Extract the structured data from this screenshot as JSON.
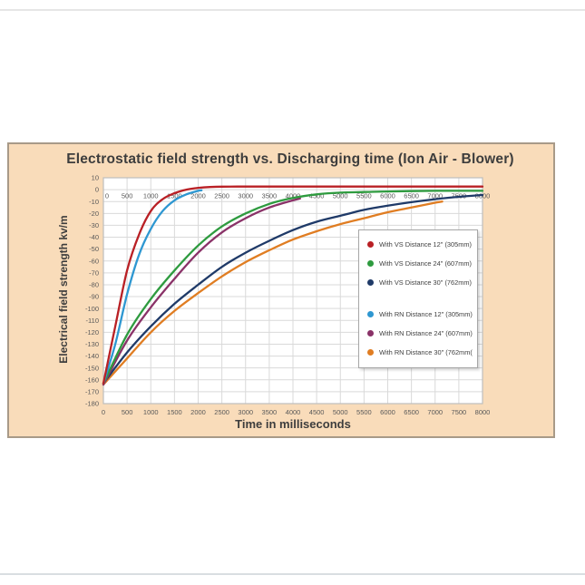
{
  "page": {
    "background": "#ffffff"
  },
  "decor": {
    "top_rule_color": "#e6e6e6",
    "bottom_rule_color": "#d9dee1"
  },
  "panel": {
    "background": "#f9dcba",
    "border_color": "#a89a88"
  },
  "chart_data": {
    "type": "line",
    "title": "Electrostatic field strength vs. Discharging time (Ion Air - Blower)",
    "xlabel": "Time in milliseconds",
    "ylabel": "Electrical field strength kv/m",
    "xlim": [
      0,
      8000
    ],
    "ylim": [
      -180,
      10
    ],
    "x_ticks": [
      0,
      500,
      1000,
      1500,
      2000,
      2500,
      3000,
      3500,
      4000,
      4500,
      5000,
      5500,
      6000,
      6500,
      7000,
      7500,
      8000
    ],
    "y_ticks": [
      10,
      0,
      -10,
      -20,
      -30,
      -40,
      -50,
      -60,
      -70,
      -80,
      -90,
      -100,
      -110,
      -120,
      -130,
      -140,
      -150,
      -160,
      -170,
      -180
    ],
    "x_tick_label_rows": [
      "inside-top-at-zero-line",
      "below-axis"
    ],
    "grid": true,
    "styles": {
      "plot_background": "#ffffff",
      "grid_color": "#d9d9d9",
      "plot_border_color": "#bdbdbd",
      "tick_text_color": "#595959",
      "title_color": "#3d3d3d",
      "legend_background": "#ffffff",
      "legend_border_color": "#a6a6a6"
    },
    "legend": {
      "position": "inside-right",
      "groups": [
        [
          0,
          1,
          2
        ],
        [
          3,
          4,
          5
        ]
      ]
    },
    "series": [
      {
        "name": "With VS Distance 12\" (305mm)",
        "color": "#b92025",
        "points": [
          [
            0,
            -163
          ],
          [
            250,
            -115
          ],
          [
            500,
            -68
          ],
          [
            750,
            -38
          ],
          [
            1000,
            -18
          ],
          [
            1250,
            -8
          ],
          [
            1500,
            -3
          ],
          [
            1750,
            0
          ],
          [
            2000,
            1.5
          ],
          [
            2250,
            2.2
          ],
          [
            2500,
            2.5
          ],
          [
            3000,
            2.6
          ],
          [
            3500,
            2.6
          ],
          [
            4000,
            2.6
          ],
          [
            4500,
            2.6
          ],
          [
            5000,
            2.6
          ],
          [
            5500,
            2.6
          ],
          [
            6000,
            2.6
          ],
          [
            6500,
            2.6
          ],
          [
            7000,
            2.6
          ],
          [
            7500,
            2.6
          ],
          [
            8000,
            2.6
          ]
        ]
      },
      {
        "name": "With VS Distance 24\" (607mm)",
        "color": "#2e9b3f",
        "points": [
          [
            0,
            -163
          ],
          [
            500,
            -122
          ],
          [
            1000,
            -92
          ],
          [
            1500,
            -68
          ],
          [
            2000,
            -47
          ],
          [
            2500,
            -31
          ],
          [
            3000,
            -20
          ],
          [
            3500,
            -12
          ],
          [
            4000,
            -7
          ],
          [
            4500,
            -4
          ],
          [
            5000,
            -2.5
          ],
          [
            5500,
            -2
          ],
          [
            6000,
            -1.5
          ],
          [
            6500,
            -1.2
          ],
          [
            7000,
            -1
          ],
          [
            7500,
            -1
          ],
          [
            8000,
            -1
          ]
        ]
      },
      {
        "name": "With VS Distance 30\" (762mm)",
        "color": "#1f3a68",
        "points": [
          [
            0,
            -163
          ],
          [
            500,
            -137
          ],
          [
            1000,
            -115
          ],
          [
            1500,
            -96
          ],
          [
            2000,
            -80
          ],
          [
            2500,
            -65
          ],
          [
            3000,
            -53
          ],
          [
            3500,
            -43
          ],
          [
            4000,
            -34
          ],
          [
            4500,
            -27
          ],
          [
            5000,
            -22
          ],
          [
            5500,
            -17
          ],
          [
            6000,
            -13.5
          ],
          [
            6500,
            -10.5
          ],
          [
            7000,
            -8
          ],
          [
            7500,
            -6
          ],
          [
            8000,
            -4.5
          ]
        ]
      },
      {
        "name": "With RN Distance 12\" (305mm)",
        "color": "#2e97d1",
        "points": [
          [
            0,
            -163
          ],
          [
            250,
            -130
          ],
          [
            500,
            -88
          ],
          [
            750,
            -55
          ],
          [
            1000,
            -33
          ],
          [
            1250,
            -18
          ],
          [
            1500,
            -9
          ],
          [
            1750,
            -4
          ],
          [
            2000,
            -1
          ],
          [
            2070,
            -0.5
          ]
        ]
      },
      {
        "name": "With RN Distance 24\" (607mm)",
        "color": "#8a3268",
        "points": [
          [
            0,
            -164
          ],
          [
            500,
            -127
          ],
          [
            1000,
            -99
          ],
          [
            1500,
            -75
          ],
          [
            2000,
            -53
          ],
          [
            2500,
            -36
          ],
          [
            3000,
            -24
          ],
          [
            3500,
            -15
          ],
          [
            4000,
            -9
          ],
          [
            4150,
            -7.5
          ]
        ]
      },
      {
        "name": "With RN Distance 30\" (762mm(",
        "color": "#e07d22",
        "points": [
          [
            0,
            -164
          ],
          [
            500,
            -142
          ],
          [
            1000,
            -120
          ],
          [
            1500,
            -102
          ],
          [
            2000,
            -87
          ],
          [
            2500,
            -73
          ],
          [
            3000,
            -61
          ],
          [
            3500,
            -51
          ],
          [
            4000,
            -42
          ],
          [
            4500,
            -35
          ],
          [
            5000,
            -29
          ],
          [
            5500,
            -24
          ],
          [
            6000,
            -19
          ],
          [
            6500,
            -15
          ],
          [
            7000,
            -11
          ],
          [
            7150,
            -10
          ]
        ]
      }
    ]
  }
}
